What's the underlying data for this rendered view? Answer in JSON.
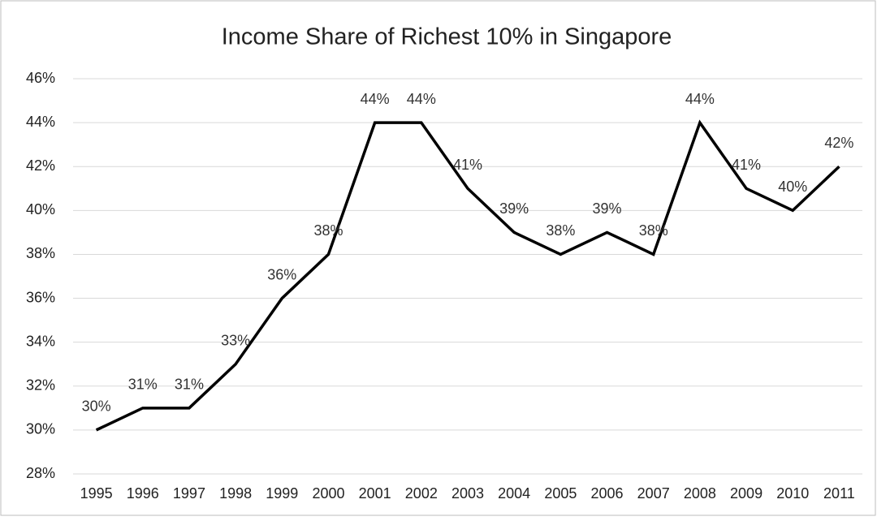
{
  "chart_data": {
    "type": "line",
    "title": "Income Share of Richest 10% in Singapore",
    "categories": [
      "1995",
      "1996",
      "1997",
      "1998",
      "1999",
      "2000",
      "2001",
      "2002",
      "2003",
      "2004",
      "2005",
      "2006",
      "2007",
      "2008",
      "2009",
      "2010",
      "2011"
    ],
    "values": [
      30,
      31,
      31,
      33,
      36,
      38,
      44,
      44,
      41,
      39,
      38,
      39,
      38,
      44,
      41,
      40,
      42
    ],
    "value_labels": [
      "30%",
      "31%",
      "31%",
      "33%",
      "36%",
      "38%",
      "44%",
      "44%",
      "41%",
      "39%",
      "38%",
      "39%",
      "38%",
      "44%",
      "41%",
      "40%",
      "42%"
    ],
    "color": "#000000",
    "ylim": [
      28,
      46
    ],
    "yticks": [
      {
        "value": 28,
        "label": "28%"
      },
      {
        "value": 30,
        "label": "30%"
      },
      {
        "value": 32,
        "label": "32%"
      },
      {
        "value": 34,
        "label": "34%"
      },
      {
        "value": 36,
        "label": "36%"
      },
      {
        "value": 38,
        "label": "38%"
      },
      {
        "value": 40,
        "label": "40%"
      },
      {
        "value": 42,
        "label": "42%"
      },
      {
        "value": 44,
        "label": "44%"
      },
      {
        "value": 46,
        "label": "46%"
      }
    ],
    "grid": true
  }
}
